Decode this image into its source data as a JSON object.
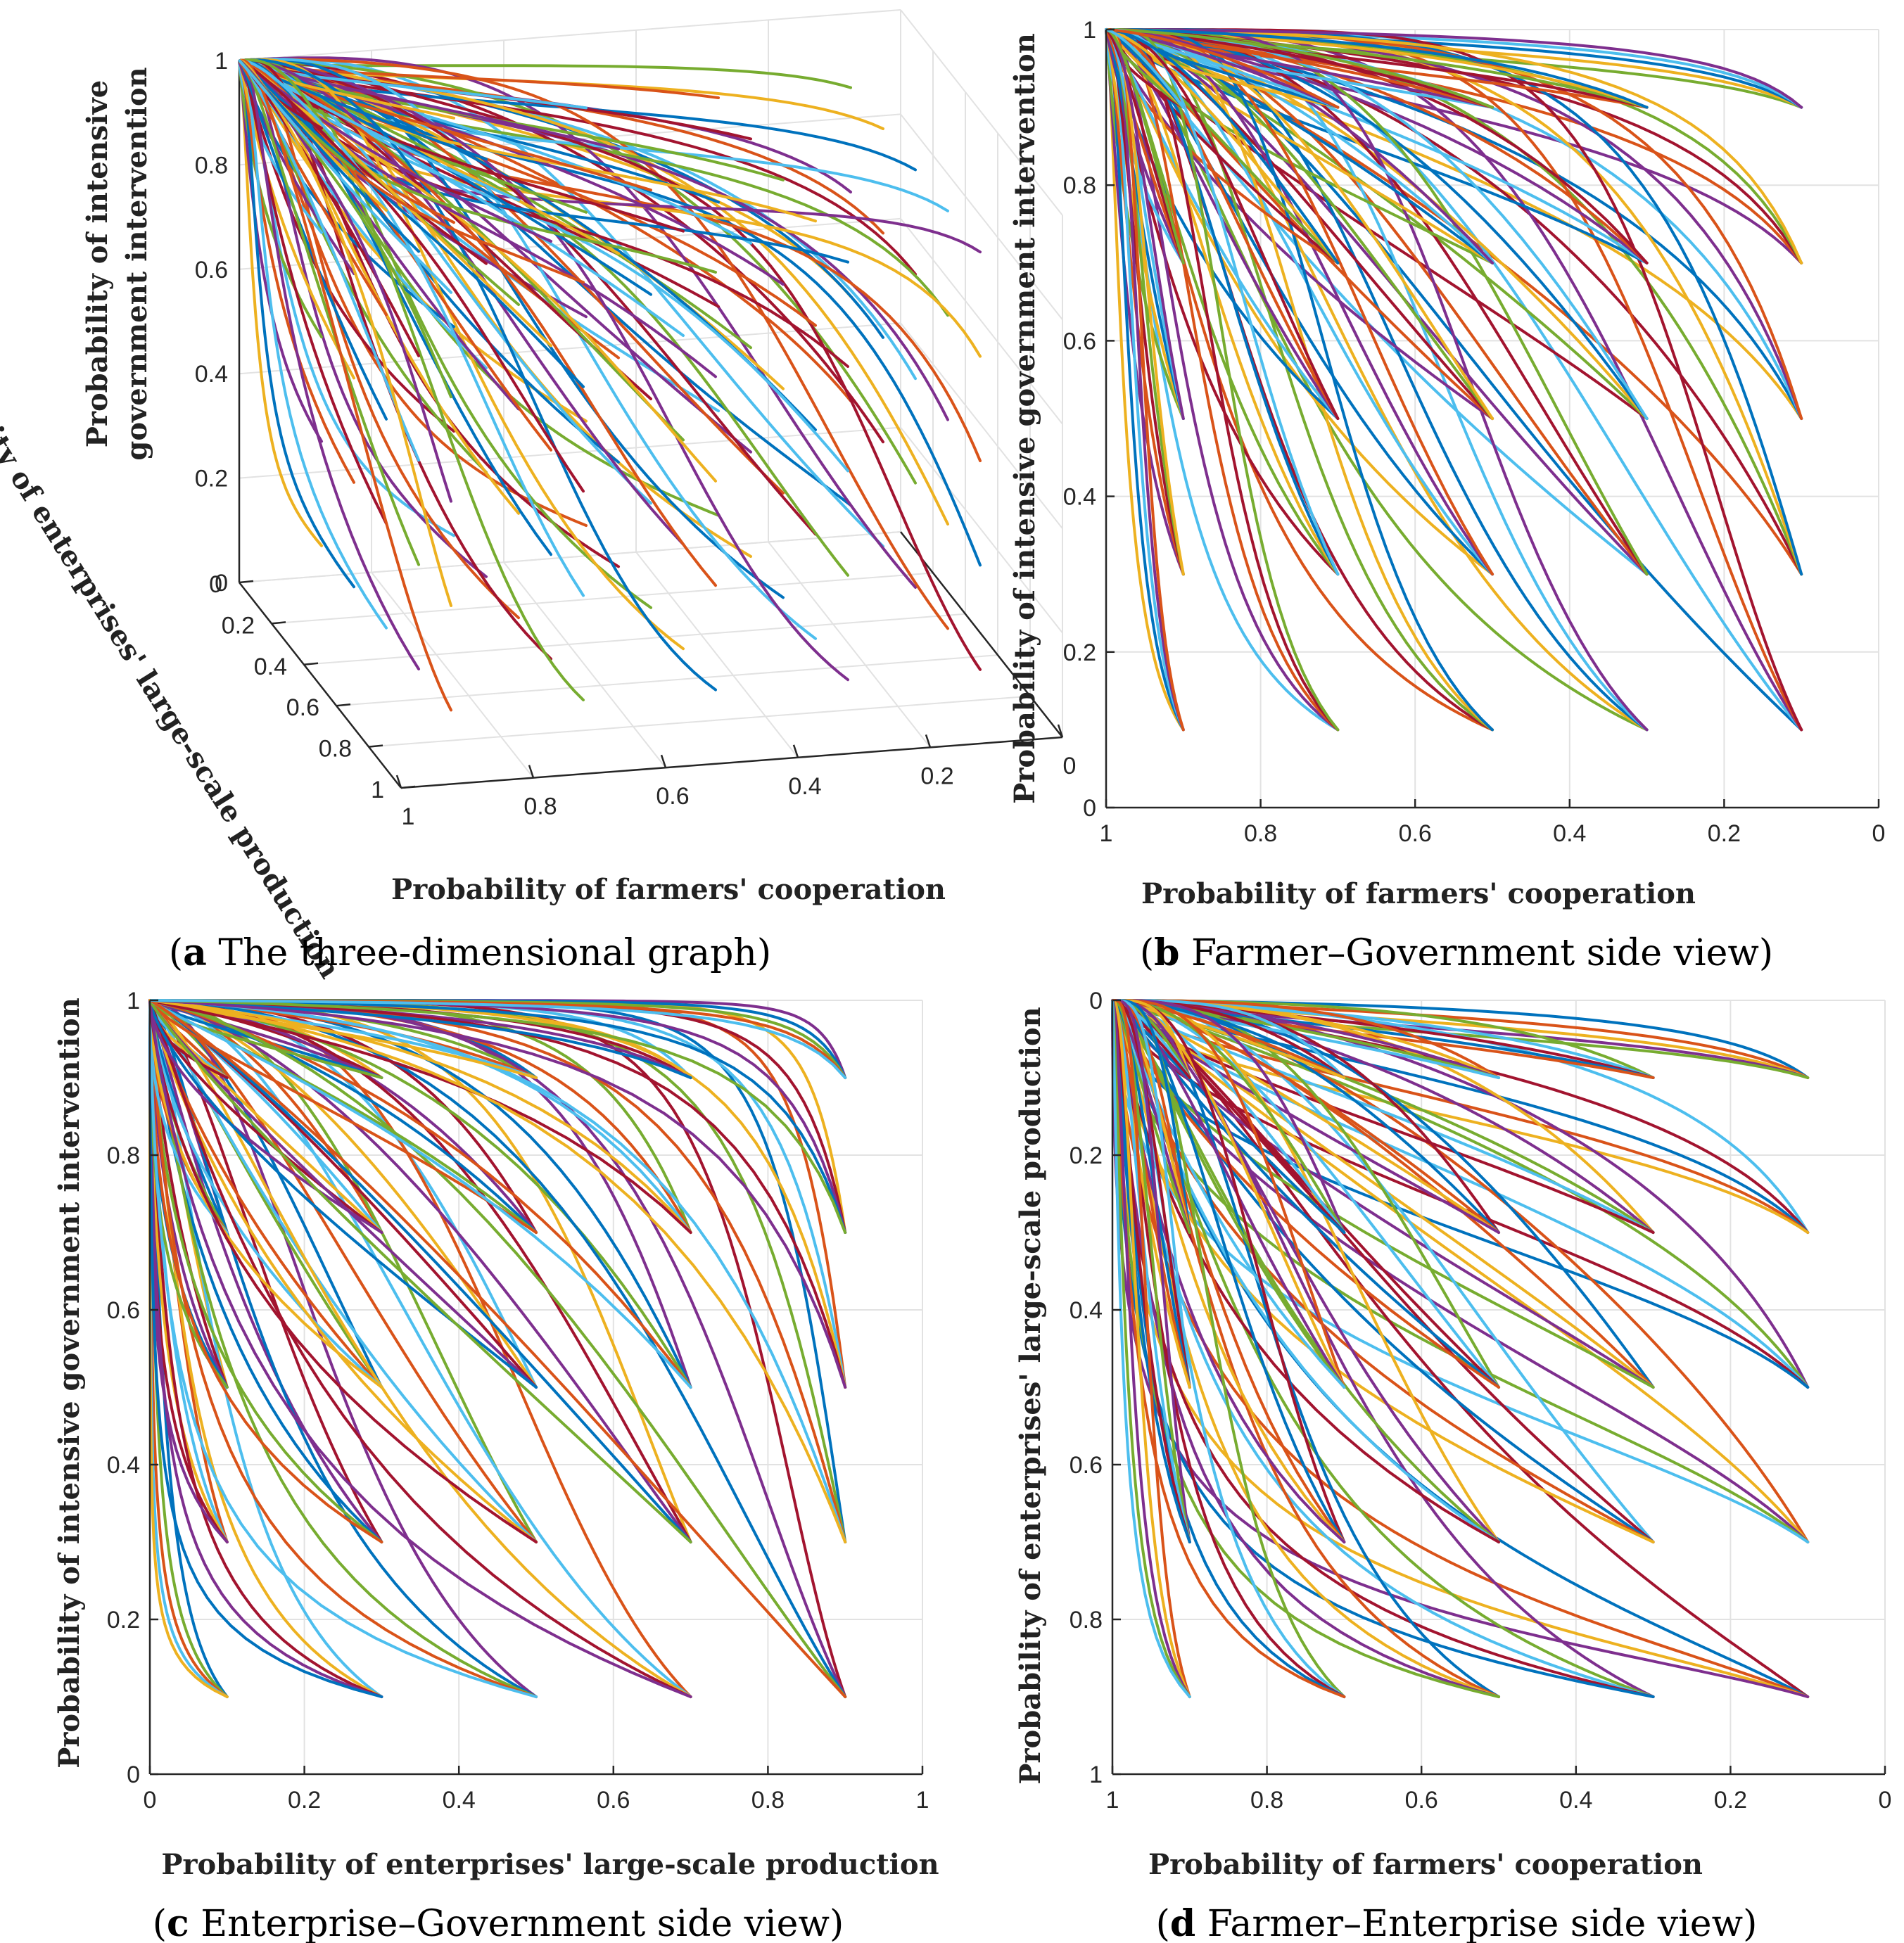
{
  "colors": [
    "#0072BD",
    "#D95319",
    "#EDB120",
    "#7E2F8E",
    "#77AC30",
    "#4DBEEE",
    "#A2142F"
  ],
  "chart_data": [
    {
      "id": "a",
      "type": "line",
      "view": "3d",
      "caption": {
        "letter": "a",
        "text": " The three-dimensional graph"
      },
      "xlabel": "Probability of farmers' cooperation",
      "ylabel": "Probability of enterprises' large-scale production",
      "zlabel": "Probability of intensive government intervention",
      "x_ticks": [
        "1",
        "0.8",
        "0.6",
        "0.4",
        "0.2",
        "0"
      ],
      "y_ticks": [
        "0",
        "0.2",
        "0.4",
        "0.6",
        "0.8",
        "1"
      ],
      "z_ticks": [
        "0",
        "0.2",
        "0.4",
        "0.6",
        "0.8",
        "1"
      ],
      "xlim": [
        0,
        1
      ],
      "ylim": [
        0,
        1
      ],
      "zlim": [
        0,
        1
      ],
      "grid": true
    },
    {
      "id": "b",
      "type": "line",
      "view": "farmer-government",
      "caption": {
        "letter": "b",
        "text": " Farmer–Government side view"
      },
      "xlabel": "Probability of farmers' cooperation",
      "ylabel": "Probability of intensive government intervention",
      "x_ticks": [
        "1",
        "0.8",
        "0.6",
        "0.4",
        "0.2",
        "0"
      ],
      "y_ticks": [
        "0",
        "0.2",
        "0.4",
        "0.6",
        "0.8",
        "1"
      ],
      "xlim": [
        1,
        0
      ],
      "ylim": [
        0,
        1
      ],
      "grid": true
    },
    {
      "id": "c",
      "type": "line",
      "view": "enterprise-government",
      "caption": {
        "letter": "c",
        "text": " Enterprise–Government side view"
      },
      "xlabel": "Probability of enterprises' large-scale production",
      "ylabel": "Probability of intensive government intervention",
      "x_ticks": [
        "0",
        "0.2",
        "0.4",
        "0.6",
        "0.8",
        "1"
      ],
      "y_ticks": [
        "0",
        "0.2",
        "0.4",
        "0.6",
        "0.8",
        "1"
      ],
      "xlim": [
        0,
        1
      ],
      "ylim": [
        0,
        1
      ],
      "grid": true
    },
    {
      "id": "d",
      "type": "line",
      "view": "farmer-enterprise",
      "caption": {
        "letter": "d",
        "text": " Farmer–Enterprise side view"
      },
      "xlabel": "Probability of farmers' cooperation",
      "ylabel": "Probability of enterprises' large-scale production",
      "x_ticks": [
        "1",
        "0.8",
        "0.6",
        "0.4",
        "0.2",
        "0"
      ],
      "y_ticks": [
        "0",
        "0.2",
        "0.4",
        "0.6",
        "0.8",
        "1"
      ],
      "xlim": [
        1,
        0
      ],
      "ylim": [
        1,
        0
      ],
      "grid": true
    }
  ],
  "trajectories": {
    "description_free_values": true,
    "initial_x": [
      0.1,
      0.3,
      0.5,
      0.7,
      0.9
    ],
    "initial_y": [
      0.1,
      0.3,
      0.5,
      0.7,
      0.9
    ],
    "initial_z": [
      0.1,
      0.3,
      0.5,
      0.7,
      0.9
    ],
    "converge_to": {
      "x": 1,
      "y": 0,
      "z": 1
    }
  }
}
